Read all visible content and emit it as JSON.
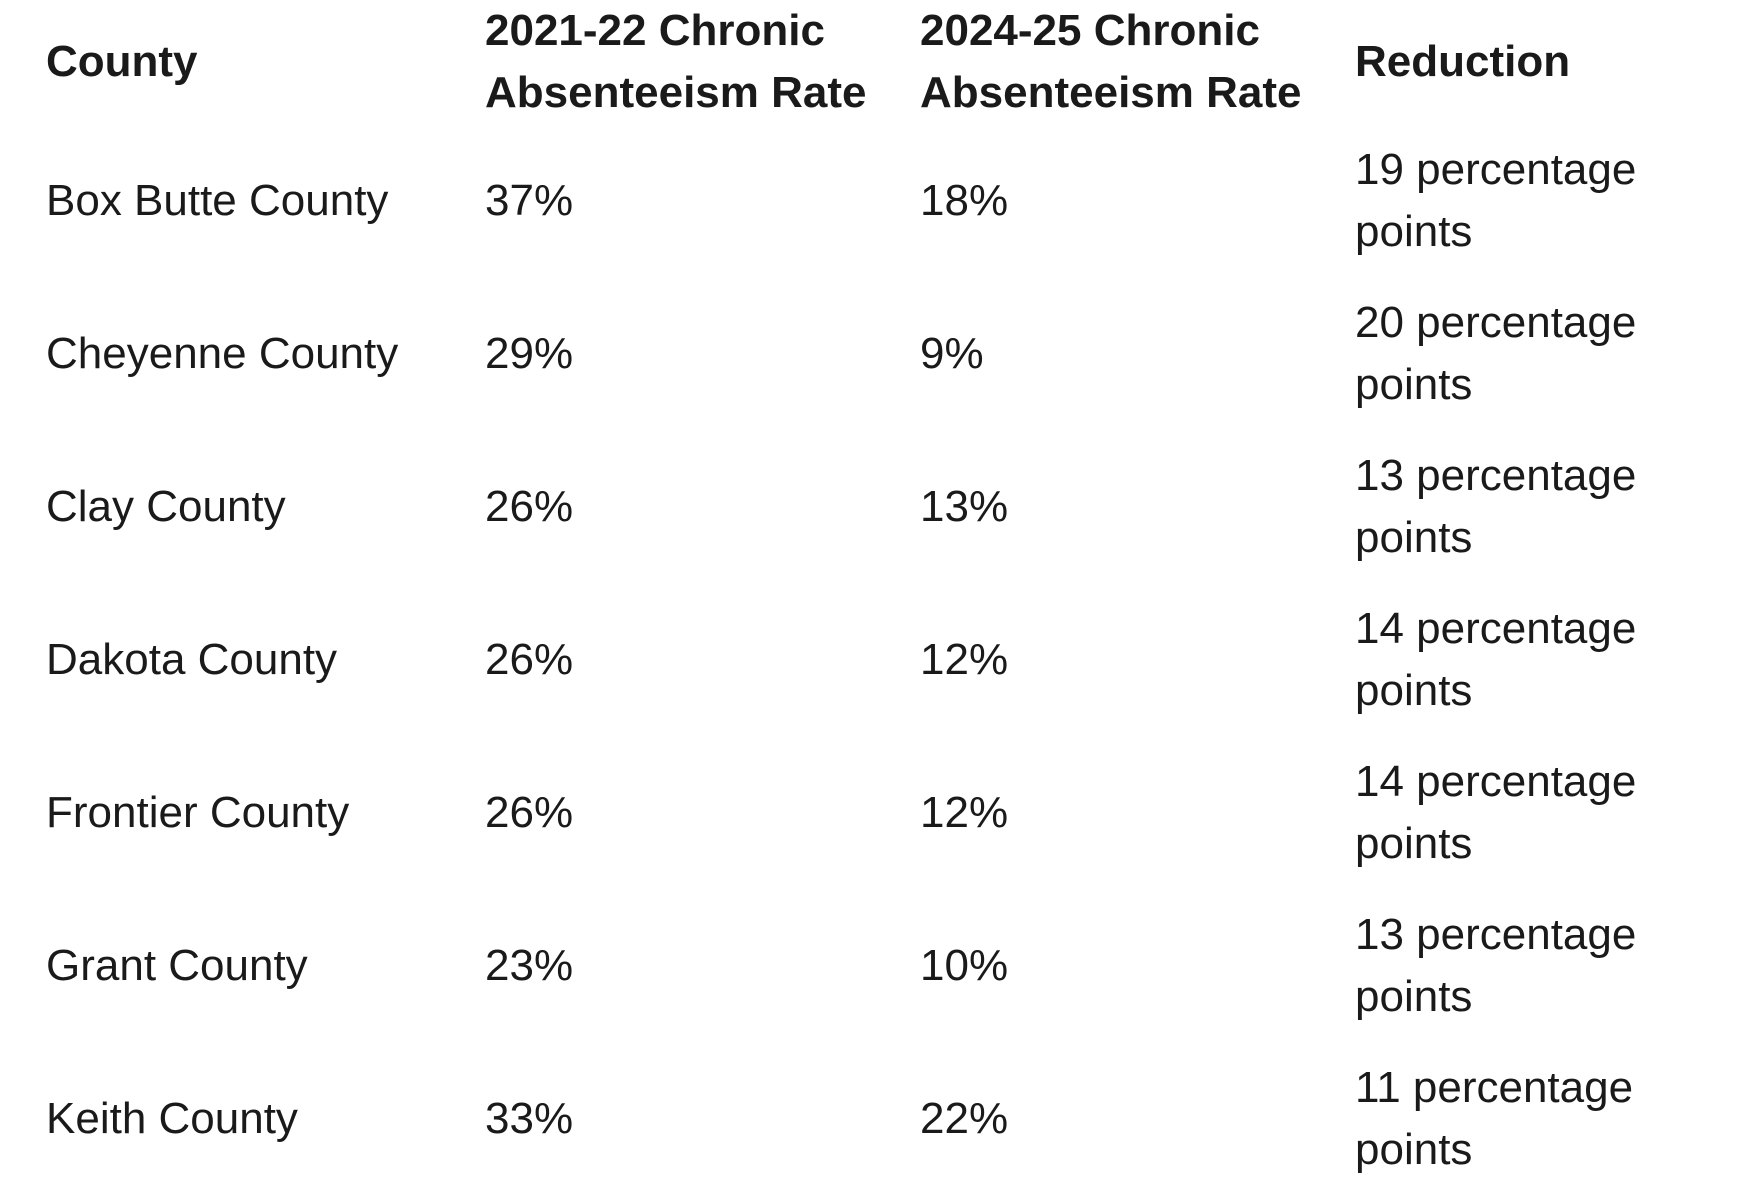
{
  "colors": {
    "background": "#ffffff",
    "text": "#1a1a1a"
  },
  "chart_data": {
    "type": "table",
    "columns": [
      "County",
      "2021-22 Chronic Absenteeism Rate",
      "2024-25 Chronic Absenteeism Rate",
      "Reduction"
    ],
    "rows": [
      [
        "Box Butte County",
        "37%",
        "18%",
        "19 percentage points"
      ],
      [
        "Cheyenne County",
        "29%",
        "9%",
        "20 percentage points"
      ],
      [
        "Clay County",
        "26%",
        "13%",
        "13 percentage points"
      ],
      [
        "Dakota County",
        "26%",
        "12%",
        "14 percentage points"
      ],
      [
        "Frontier County",
        "26%",
        "12%",
        "14 percentage points"
      ],
      [
        "Grant County",
        "23%",
        "10%",
        "13 percentage points"
      ],
      [
        "Keith County",
        "33%",
        "22%",
        "11 percentage points"
      ]
    ]
  }
}
